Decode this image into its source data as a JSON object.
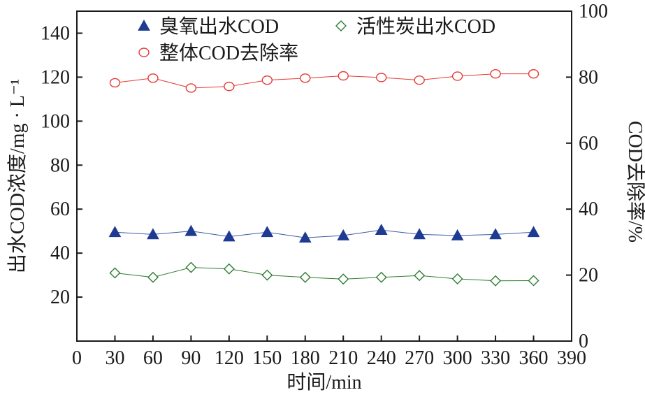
{
  "chart_data": {
    "type": "line",
    "x": [
      30,
      60,
      90,
      120,
      150,
      180,
      210,
      240,
      270,
      300,
      330,
      360
    ],
    "xlabel": "时间/min",
    "ylabel": "出水COD浓度/mg · L⁻¹",
    "y2label": "COD去除率/%",
    "xlim": [
      0,
      390
    ],
    "ylim": [
      0,
      150
    ],
    "y2lim": [
      0,
      100
    ],
    "x_ticks": [
      0,
      30,
      60,
      90,
      120,
      150,
      180,
      210,
      240,
      270,
      300,
      330,
      360,
      390
    ],
    "y_ticks": [
      20,
      40,
      60,
      80,
      100,
      120,
      140
    ],
    "y2_ticks": [
      0,
      20,
      40,
      60,
      80,
      100
    ],
    "grid": false,
    "legend_position": "top",
    "series": [
      {
        "name": "臭氧出水COD",
        "axis": "left",
        "marker": "triangle-filled",
        "color": "#1f3a93",
        "line_color": "#3d5aa8",
        "values": [
          49.5,
          48.5,
          50,
          47.5,
          49.5,
          47,
          48,
          50.5,
          48.5,
          48,
          48.5,
          49.5
        ]
      },
      {
        "name": "活性炭出水COD",
        "axis": "left",
        "marker": "diamond-open",
        "color": "#2e7d32",
        "line_color": "#2e7d32",
        "values": [
          31,
          29,
          33.5,
          32.8,
          30,
          29,
          28.2,
          29,
          29.8,
          28.3,
          27.4,
          27.5
        ]
      },
      {
        "name": "整体COD去除率",
        "axis": "right",
        "marker": "circle-open",
        "color": "#e53935",
        "line_color": "#e53935",
        "values": [
          78.3,
          79.7,
          76.7,
          77.2,
          79.1,
          79.7,
          80.4,
          79.9,
          79.1,
          80.3,
          81,
          81
        ]
      }
    ]
  }
}
